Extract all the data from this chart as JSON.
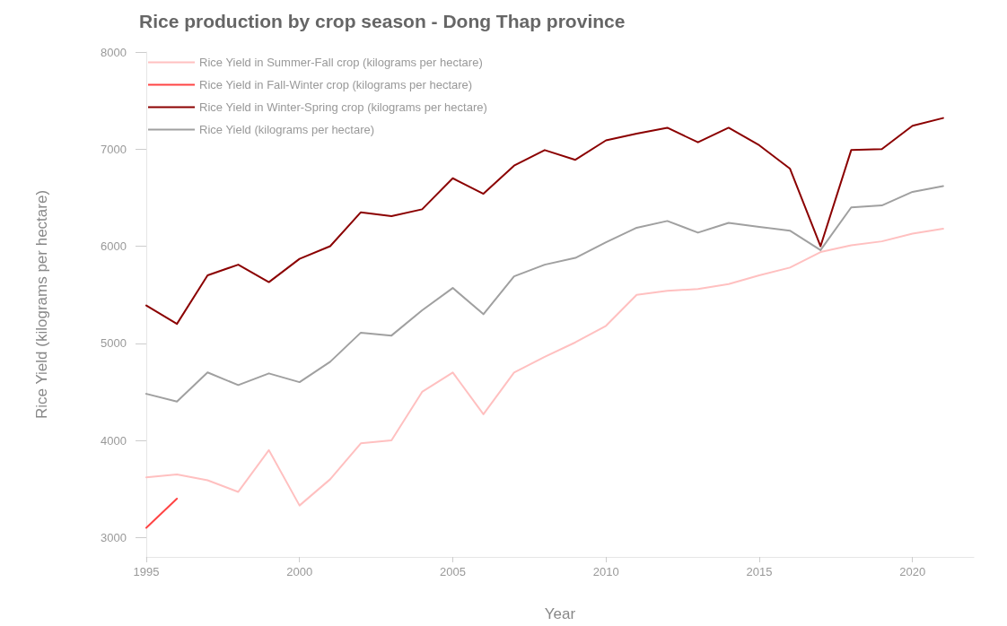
{
  "chart_data": {
    "type": "line",
    "title": "Rice production by crop season - Dong Thap province",
    "xlabel": "Year",
    "ylabel": "Rice Yield (kilograms per hectare)",
    "x": [
      1995,
      1996,
      1997,
      1998,
      1999,
      2000,
      2001,
      2002,
      2003,
      2004,
      2005,
      2006,
      2007,
      2008,
      2009,
      2010,
      2011,
      2012,
      2013,
      2014,
      2015,
      2016,
      2017,
      2018,
      2019,
      2020,
      2021
    ],
    "series": [
      {
        "name": "Rice Yield in Summer-Fall crop (kilograms per hectare)",
        "color": "#ffc0c0",
        "values": [
          3620,
          3650,
          3590,
          3470,
          3900,
          3330,
          3600,
          3970,
          4000,
          4500,
          4700,
          4270,
          4700,
          4860,
          5010,
          5180,
          5500,
          5540,
          5560,
          5610,
          5700,
          5780,
          5940,
          6010,
          6050,
          6130,
          6180
        ]
      },
      {
        "name": "Rice Yield in Fall-Winter crop (kilograms per hectare)",
        "color": "#ff4444",
        "x": [
          1995,
          1996
        ],
        "values": [
          3100,
          3400
        ]
      },
      {
        "name": "Rice Yield in Winter-Spring crop (kilograms per hectare)",
        "color": "#8b0000",
        "values": [
          5390,
          5200,
          5700,
          5810,
          5630,
          5870,
          6000,
          6350,
          6310,
          6380,
          6700,
          6540,
          6830,
          6990,
          6890,
          7090,
          7160,
          7220,
          7070,
          7220,
          7040,
          6800,
          6000,
          6990,
          7000,
          7240,
          7320
        ]
      },
      {
        "name": "Rice Yield (kilograms per hectare)",
        "color": "#a0a0a0",
        "values": [
          4480,
          4400,
          4700,
          4570,
          4690,
          4600,
          4810,
          5110,
          5080,
          5340,
          5570,
          5300,
          5690,
          5810,
          5880,
          6040,
          6190,
          6260,
          6140,
          6240,
          6200,
          6160,
          5960,
          6400,
          6420,
          6560,
          6620
        ]
      }
    ],
    "xlim": [
      1995,
      2022
    ],
    "xticks": [
      1995,
      2000,
      2005,
      2010,
      2015,
      2020
    ],
    "ylim": [
      2800,
      8000
    ],
    "yticks": [
      3000,
      4000,
      5000,
      6000,
      7000,
      8000
    ],
    "grid": false,
    "legend": "top left",
    "marker": "none",
    "line_style": "solid"
  }
}
